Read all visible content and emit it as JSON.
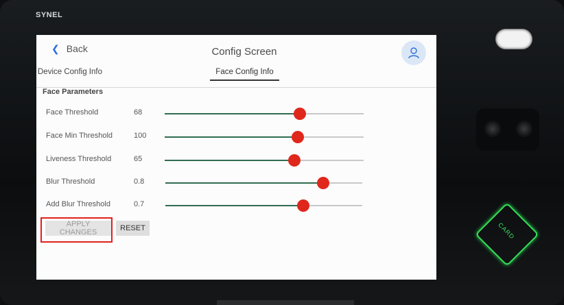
{
  "device": {
    "brand": "SYNEL",
    "card_label": "CARD"
  },
  "screen": {
    "back_label": "Back",
    "title": "Config Screen",
    "tabs": [
      {
        "label": "Device Config Info",
        "active": false
      },
      {
        "label": "Face Config Info",
        "active": true
      }
    ],
    "section_title": "Face Parameters",
    "params": [
      {
        "label": "Face Threshold",
        "value": "68",
        "level": 0.68
      },
      {
        "label": "Face Min Threshold",
        "value": "100",
        "level": 0.67
      },
      {
        "label": "Liveness Threshold",
        "value": "65",
        "level": 0.65
      },
      {
        "label": "Blur Threshold",
        "value": "0.8",
        "level": 0.8
      },
      {
        "label": "Add Blur Threshold",
        "value": "0.7",
        "level": 0.7
      }
    ],
    "buttons": {
      "apply_label": "APPLY CHANGES",
      "reset_label": "RESET"
    }
  },
  "colors": {
    "slider_thumb": "#e0271c",
    "slider_fill": "#2f6b4f",
    "highlight": "#e0201e",
    "card_reader": "#36e05a"
  },
  "icons": {
    "back": "chevron-left-icon",
    "user": "user-icon"
  }
}
